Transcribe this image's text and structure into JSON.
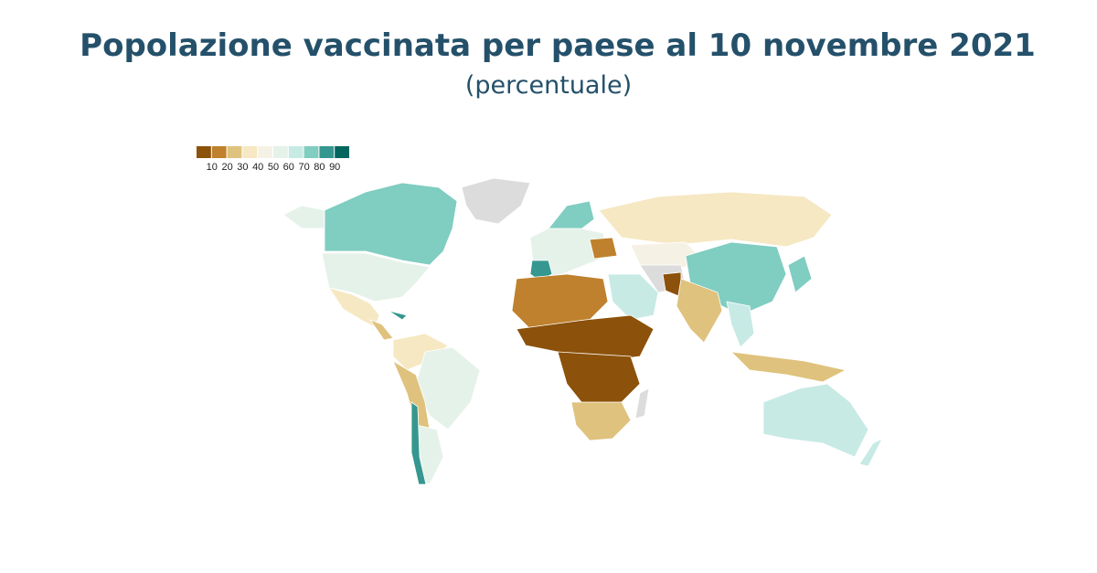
{
  "map": {
    "title": "Popolazione vaccinata per paese al 10 novembre 2021",
    "subtitle": "(percentuale)",
    "legend": {
      "colors": [
        "#8c510a",
        "#bf812d",
        "#dfc27d",
        "#f6e8c3",
        "#f5f1e4",
        "#e5f2ea",
        "#c7eae5",
        "#80cdc1",
        "#35978f",
        "#01665e"
      ],
      "ticks": [
        10,
        20,
        30,
        40,
        50,
        60,
        70,
        80,
        90
      ]
    }
  }
}
